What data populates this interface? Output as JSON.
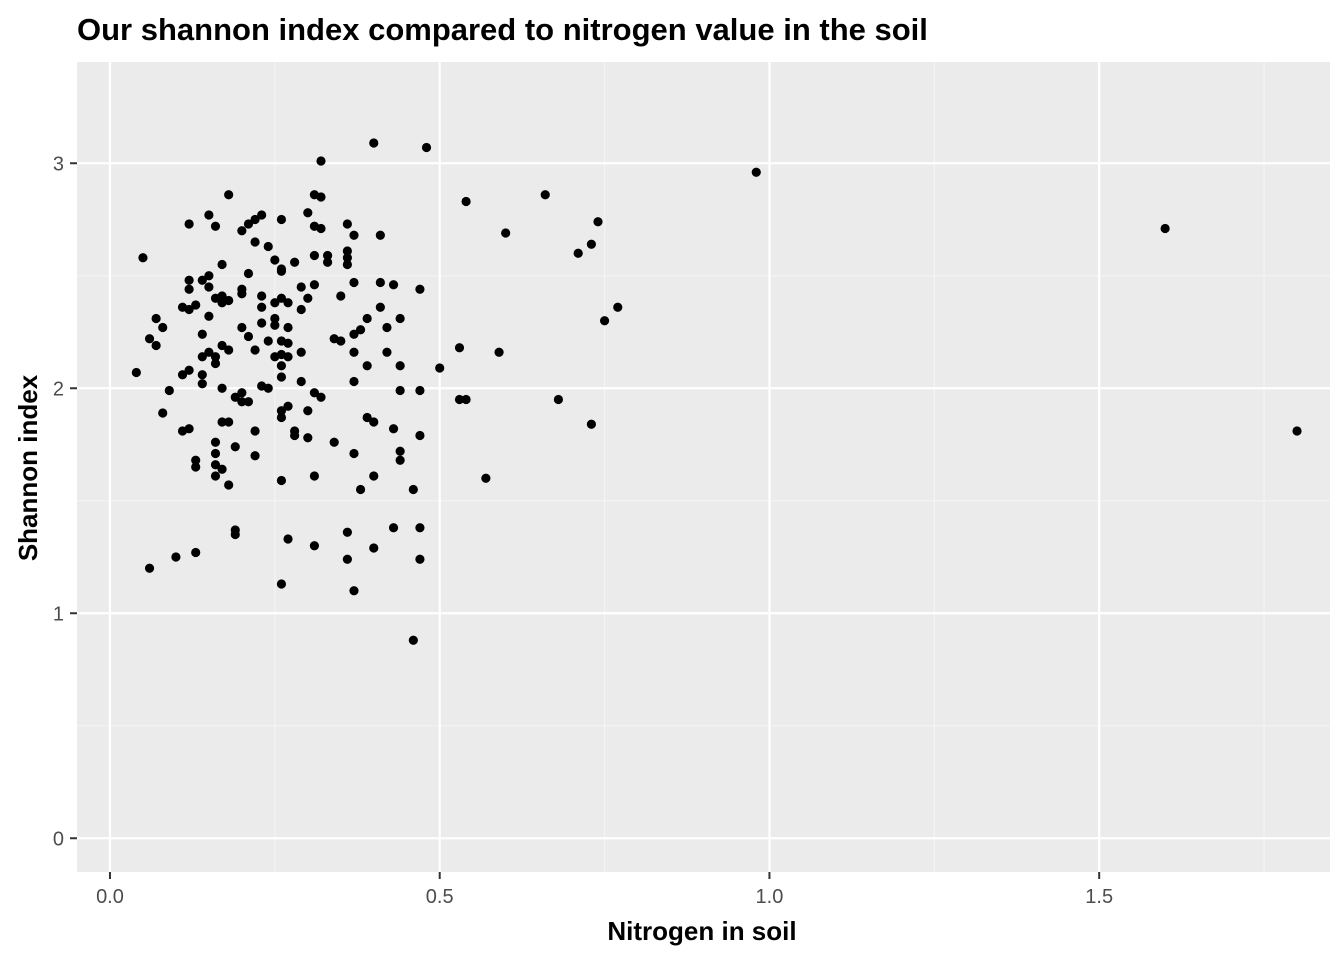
{
  "chart_data": {
    "type": "scatter",
    "title": "Our shannon index compared to nitrogen value in the soil",
    "xlabel": "Nitrogen in soil",
    "ylabel": "Shannon index",
    "xlim": [
      -0.05,
      1.85
    ],
    "ylim": [
      -0.15,
      3.45
    ],
    "x_ticks": [
      0.0,
      0.5,
      1.0,
      1.5
    ],
    "x_tick_labels": [
      "0.0",
      "0.5",
      "1.0",
      "1.5"
    ],
    "y_ticks": [
      0,
      1,
      2,
      3
    ],
    "y_tick_labels": [
      "0",
      "1",
      "2",
      "3"
    ],
    "grid": true,
    "colors": {
      "panel_background": "#ebebeb",
      "grid_major": "#ffffff",
      "grid_minor": "#f5f5f5",
      "point": "#000000",
      "tick": "#333333"
    },
    "points": [
      [
        0.04,
        2.07
      ],
      [
        0.05,
        2.58
      ],
      [
        0.06,
        2.22
      ],
      [
        0.06,
        1.2
      ],
      [
        0.07,
        2.31
      ],
      [
        0.07,
        2.19
      ],
      [
        0.08,
        2.27
      ],
      [
        0.08,
        1.89
      ],
      [
        0.09,
        1.99
      ],
      [
        0.1,
        1.25
      ],
      [
        0.11,
        2.36
      ],
      [
        0.11,
        2.06
      ],
      [
        0.11,
        1.81
      ],
      [
        0.12,
        2.73
      ],
      [
        0.12,
        2.48
      ],
      [
        0.12,
        2.44
      ],
      [
        0.12,
        2.35
      ],
      [
        0.12,
        2.08
      ],
      [
        0.12,
        1.82
      ],
      [
        0.13,
        2.37
      ],
      [
        0.13,
        1.68
      ],
      [
        0.13,
        1.65
      ],
      [
        0.13,
        1.27
      ],
      [
        0.14,
        2.48
      ],
      [
        0.14,
        2.24
      ],
      [
        0.14,
        2.14
      ],
      [
        0.14,
        2.06
      ],
      [
        0.14,
        2.02
      ],
      [
        0.15,
        2.5
      ],
      [
        0.15,
        2.77
      ],
      [
        0.15,
        2.45
      ],
      [
        0.15,
        2.32
      ],
      [
        0.15,
        2.16
      ],
      [
        0.16,
        2.72
      ],
      [
        0.16,
        2.4
      ],
      [
        0.16,
        2.14
      ],
      [
        0.16,
        2.11
      ],
      [
        0.16,
        1.76
      ],
      [
        0.16,
        1.71
      ],
      [
        0.16,
        1.66
      ],
      [
        0.16,
        1.61
      ],
      [
        0.17,
        2.55
      ],
      [
        0.17,
        2.41
      ],
      [
        0.17,
        2.38
      ],
      [
        0.17,
        2.19
      ],
      [
        0.17,
        2.0
      ],
      [
        0.17,
        1.85
      ],
      [
        0.17,
        1.64
      ],
      [
        0.18,
        2.86
      ],
      [
        0.18,
        2.39
      ],
      [
        0.18,
        2.17
      ],
      [
        0.18,
        1.85
      ],
      [
        0.18,
        1.57
      ],
      [
        0.19,
        1.96
      ],
      [
        0.19,
        1.74
      ],
      [
        0.19,
        1.37
      ],
      [
        0.19,
        1.35
      ],
      [
        0.2,
        2.7
      ],
      [
        0.2,
        2.44
      ],
      [
        0.2,
        2.42
      ],
      [
        0.2,
        2.27
      ],
      [
        0.2,
        1.98
      ],
      [
        0.2,
        1.94
      ],
      [
        0.21,
        2.73
      ],
      [
        0.21,
        2.51
      ],
      [
        0.21,
        2.23
      ],
      [
        0.21,
        1.94
      ],
      [
        0.22,
        2.75
      ],
      [
        0.22,
        2.65
      ],
      [
        0.22,
        2.17
      ],
      [
        0.22,
        1.81
      ],
      [
        0.22,
        1.7
      ],
      [
        0.23,
        2.77
      ],
      [
        0.23,
        2.41
      ],
      [
        0.23,
        2.36
      ],
      [
        0.23,
        2.29
      ],
      [
        0.23,
        2.01
      ],
      [
        0.24,
        2.63
      ],
      [
        0.24,
        2.21
      ],
      [
        0.24,
        2.0
      ],
      [
        0.25,
        2.57
      ],
      [
        0.25,
        2.38
      ],
      [
        0.25,
        2.31
      ],
      [
        0.25,
        2.28
      ],
      [
        0.25,
        2.14
      ],
      [
        0.26,
        2.75
      ],
      [
        0.26,
        2.53
      ],
      [
        0.26,
        2.52
      ],
      [
        0.26,
        2.4
      ],
      [
        0.26,
        2.21
      ],
      [
        0.26,
        2.15
      ],
      [
        0.26,
        2.1
      ],
      [
        0.26,
        2.05
      ],
      [
        0.26,
        1.9
      ],
      [
        0.26,
        1.87
      ],
      [
        0.26,
        1.59
      ],
      [
        0.26,
        1.13
      ],
      [
        0.27,
        2.38
      ],
      [
        0.27,
        2.27
      ],
      [
        0.27,
        2.2
      ],
      [
        0.27,
        2.14
      ],
      [
        0.27,
        1.92
      ],
      [
        0.27,
        1.33
      ],
      [
        0.28,
        2.56
      ],
      [
        0.28,
        1.81
      ],
      [
        0.28,
        1.79
      ],
      [
        0.29,
        2.45
      ],
      [
        0.29,
        2.35
      ],
      [
        0.29,
        2.16
      ],
      [
        0.29,
        2.03
      ],
      [
        0.3,
        2.78
      ],
      [
        0.3,
        2.4
      ],
      [
        0.3,
        1.9
      ],
      [
        0.3,
        1.78
      ],
      [
        0.31,
        2.86
      ],
      [
        0.31,
        2.72
      ],
      [
        0.31,
        2.59
      ],
      [
        0.31,
        2.46
      ],
      [
        0.31,
        1.98
      ],
      [
        0.31,
        1.61
      ],
      [
        0.31,
        1.3
      ],
      [
        0.32,
        3.01
      ],
      [
        0.32,
        2.85
      ],
      [
        0.32,
        2.71
      ],
      [
        0.32,
        1.96
      ],
      [
        0.33,
        2.59
      ],
      [
        0.33,
        2.56
      ],
      [
        0.34,
        2.22
      ],
      [
        0.34,
        1.76
      ],
      [
        0.35,
        2.41
      ],
      [
        0.35,
        2.21
      ],
      [
        0.36,
        2.73
      ],
      [
        0.36,
        2.61
      ],
      [
        0.36,
        2.58
      ],
      [
        0.36,
        2.55
      ],
      [
        0.36,
        1.36
      ],
      [
        0.36,
        1.24
      ],
      [
        0.37,
        2.68
      ],
      [
        0.37,
        2.47
      ],
      [
        0.37,
        2.24
      ],
      [
        0.37,
        2.16
      ],
      [
        0.37,
        2.03
      ],
      [
        0.37,
        1.71
      ],
      [
        0.37,
        1.1
      ],
      [
        0.38,
        2.26
      ],
      [
        0.38,
        1.55
      ],
      [
        0.39,
        2.31
      ],
      [
        0.39,
        2.1
      ],
      [
        0.39,
        1.87
      ],
      [
        0.4,
        3.09
      ],
      [
        0.4,
        1.85
      ],
      [
        0.4,
        1.61
      ],
      [
        0.4,
        1.29
      ],
      [
        0.41,
        2.68
      ],
      [
        0.41,
        2.47
      ],
      [
        0.41,
        2.36
      ],
      [
        0.42,
        2.27
      ],
      [
        0.42,
        2.16
      ],
      [
        0.43,
        2.46
      ],
      [
        0.43,
        1.82
      ],
      [
        0.43,
        1.38
      ],
      [
        0.44,
        2.31
      ],
      [
        0.44,
        2.1
      ],
      [
        0.44,
        1.99
      ],
      [
        0.44,
        1.72
      ],
      [
        0.44,
        1.68
      ],
      [
        0.46,
        1.55
      ],
      [
        0.46,
        0.88
      ],
      [
        0.47,
        2.44
      ],
      [
        0.47,
        1.99
      ],
      [
        0.47,
        1.79
      ],
      [
        0.47,
        1.38
      ],
      [
        0.47,
        1.24
      ],
      [
        0.48,
        3.07
      ],
      [
        0.5,
        2.09
      ],
      [
        0.53,
        2.18
      ],
      [
        0.53,
        1.95
      ],
      [
        0.54,
        2.83
      ],
      [
        0.54,
        1.95
      ],
      [
        0.57,
        1.6
      ],
      [
        0.59,
        2.16
      ],
      [
        0.6,
        2.69
      ],
      [
        0.66,
        2.86
      ],
      [
        0.68,
        1.95
      ],
      [
        0.71,
        2.6
      ],
      [
        0.73,
        2.64
      ],
      [
        0.73,
        1.84
      ],
      [
        0.74,
        2.74
      ],
      [
        0.75,
        2.3
      ],
      [
        0.77,
        2.36
      ],
      [
        0.98,
        2.96
      ],
      [
        1.6,
        2.71
      ],
      [
        1.8,
        1.81
      ]
    ]
  }
}
